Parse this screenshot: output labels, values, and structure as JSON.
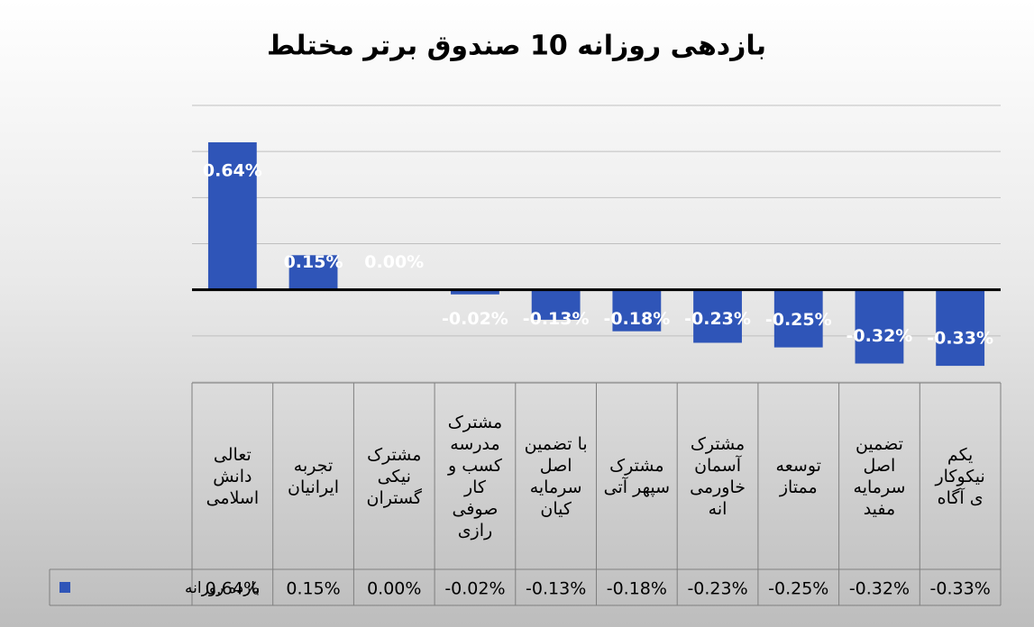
{
  "chart_data": {
    "type": "bar",
    "title": "بازدهی روزانه 10 صندوق برتر مختلط",
    "categories": [
      "تعالی\nدانش\nاسلامی",
      "تجربه\nایرانیان",
      "مشترک\nنیکی\nگستران",
      "مشترک\nمدرسه\nکسب و\nکار\nصوفی\nرازی",
      "با تضمین\nاصل\nسرمایه\nکیان",
      "مشترک\nسپهر آتی",
      "مشترک\nآسمان\nخاورمی\nانه",
      "توسعه\nممتاز",
      "تضمین\nاصل\nسرمایه\nمفید",
      "یکم\nنیکوکار\nی آگاه"
    ],
    "series": [
      {
        "name": "بازده روزانه",
        "color": "#2f55b8",
        "values": [
          0.64,
          0.15,
          0.0,
          -0.02,
          -0.13,
          -0.18,
          -0.23,
          -0.25,
          -0.32,
          -0.33
        ],
        "value_labels": [
          "0.64%",
          "0.15%",
          "0.00%",
          "-0.02%",
          "-0.13%",
          "-0.18%",
          "-0.23%",
          "-0.25%",
          "-0.32%",
          "-0.33%"
        ]
      }
    ],
    "ylim": [
      -0.4,
      0.8
    ],
    "yticks": [
      -0.4,
      -0.2,
      0,
      0.2,
      0.4,
      0.6,
      0.8
    ],
    "grid": true,
    "data_table": true
  }
}
